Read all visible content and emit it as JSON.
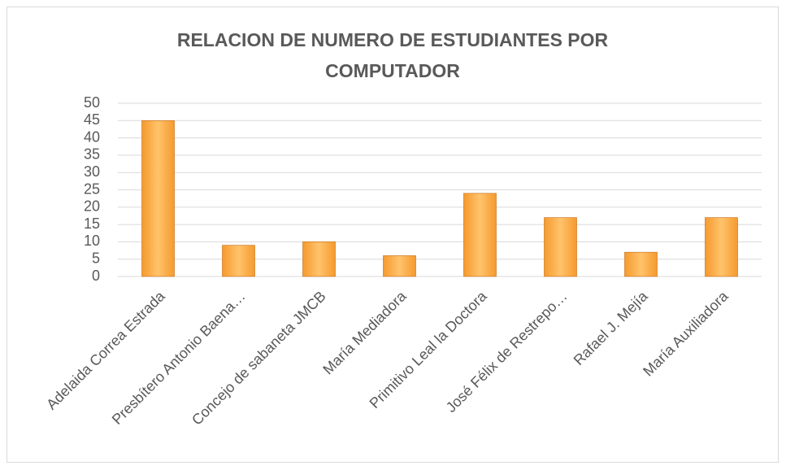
{
  "chart_data": {
    "type": "bar",
    "title": "RELACION DE NUMERO DE ESTUDIANTES POR COMPUTADOR",
    "categories": [
      "Adelaida Correa Estrada",
      "Presbítero Antonio Baena…",
      "Concejo de sabaneta JMCB",
      "María Mediadora",
      "Primitivo Leal la Doctora",
      "José Félix de Restrepo…",
      "Rafael J. Mejía",
      "María Auxiliadora"
    ],
    "values": [
      45,
      9,
      10,
      6,
      24,
      17,
      7,
      17
    ],
    "color": "#f59a2e",
    "ylim": [
      0,
      50
    ],
    "yticks": [
      0,
      5,
      10,
      15,
      20,
      25,
      30,
      35,
      40,
      45,
      50
    ],
    "grid": true
  }
}
